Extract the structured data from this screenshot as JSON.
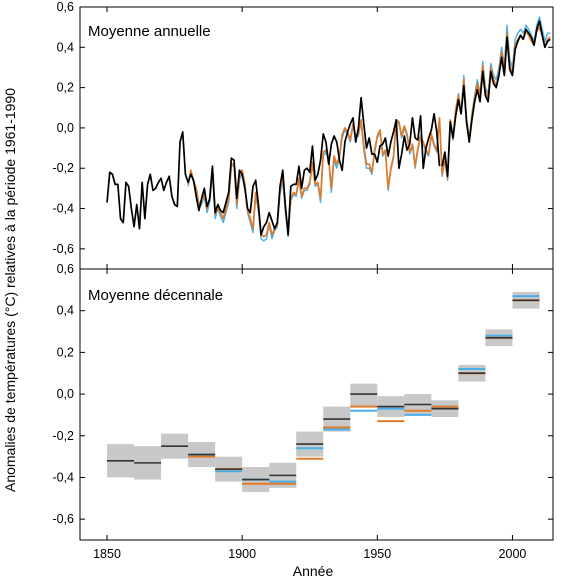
{
  "figure": {
    "ylabel": "Anomalies de températures (°C) relatives à la période 1961-1990",
    "xlabel": "Année"
  },
  "colors": {
    "black_series": "#000000",
    "orange_series": "#e07b2a",
    "blue_series": "#4aaee8",
    "band": "#c8c8c8"
  },
  "chart_data": [
    {
      "type": "line",
      "title": "Moyenne annuelle",
      "xlim": [
        1840,
        2015
      ],
      "ylim": [
        -0.7,
        0.6
      ],
      "xticks": [
        1850,
        1900,
        1950,
        2000
      ],
      "yticks": [
        "-0,6",
        "-0,4",
        "-0,2",
        "0,0",
        "0,2",
        "0,4",
        "0,6"
      ],
      "series": [
        {
          "color_key": "black_series",
          "x_start": 1850,
          "values": [
            -0.37,
            -0.22,
            -0.23,
            -0.28,
            -0.28,
            -0.45,
            -0.47,
            -0.27,
            -0.29,
            -0.4,
            -0.49,
            -0.38,
            -0.5,
            -0.27,
            -0.45,
            -0.28,
            -0.23,
            -0.31,
            -0.3,
            -0.27,
            -0.25,
            -0.31,
            -0.27,
            -0.24,
            -0.34,
            -0.38,
            -0.39,
            -0.07,
            -0.02,
            -0.23,
            -0.27,
            -0.23,
            -0.26,
            -0.34,
            -0.41,
            -0.35,
            -0.3,
            -0.39,
            -0.35,
            -0.19,
            -0.42,
            -0.38,
            -0.41,
            -0.42,
            -0.37,
            -0.32,
            -0.15,
            -0.16,
            -0.35,
            -0.21,
            -0.23,
            -0.3,
            -0.4,
            -0.42,
            -0.29,
            -0.26,
            -0.38,
            -0.53,
            -0.49,
            -0.47,
            -0.42,
            -0.46,
            -0.5,
            -0.47,
            -0.29,
            -0.21,
            -0.39,
            -0.53,
            -0.29,
            -0.28,
            -0.28,
            -0.19,
            -0.3,
            -0.21,
            -0.2,
            -0.22,
            -0.09,
            -0.26,
            -0.23,
            -0.16,
            -0.03,
            -0.07,
            -0.18,
            -0.08,
            -0.04,
            -0.07,
            -0.16,
            -0.21,
            -0.07,
            -0.02,
            0.02,
            0.05,
            -0.07,
            0.0,
            0.15,
            0.02,
            -0.1,
            -0.05,
            -0.13,
            -0.13,
            -0.17,
            -0.09,
            -0.08,
            -0.05,
            -0.14,
            -0.07,
            -0.02,
            0.04,
            -0.2,
            -0.13,
            -0.04,
            -0.11,
            -0.08,
            0.05,
            -0.05,
            -0.06,
            0.06,
            -0.2,
            -0.1,
            -0.05,
            -0.01,
            0.07,
            -0.02,
            -0.19
          ],
          "note_end": 1973
        },
        {
          "color_key": "orange_series",
          "x_start": 1880,
          "values": [
            -0.28,
            -0.21,
            -0.26,
            -0.3,
            -0.38,
            -0.36,
            -0.33,
            -0.4,
            -0.35,
            -0.2,
            -0.43,
            -0.39,
            -0.42,
            -0.45,
            -0.4,
            -0.35,
            -0.18,
            -0.18,
            -0.38,
            -0.24,
            -0.21,
            -0.28,
            -0.41,
            -0.45,
            -0.5,
            -0.32,
            -0.4,
            -0.53,
            -0.54,
            -0.53,
            -0.47,
            -0.53,
            -0.5,
            -0.48,
            -0.31,
            -0.24,
            -0.4,
            -0.52,
            -0.35,
            -0.32,
            -0.33,
            -0.25,
            -0.34,
            -0.3,
            -0.3,
            -0.27,
            -0.17,
            -0.28,
            -0.27,
            -0.35,
            -0.12,
            -0.11,
            -0.15,
            -0.3,
            -0.14,
            -0.18,
            -0.14,
            -0.03,
            0.0,
            -0.02,
            -0.06,
            0.02,
            -0.04,
            -0.03,
            0.04,
            -0.09,
            -0.18,
            -0.18,
            -0.22,
            -0.11,
            -0.04,
            -0.01,
            -0.13,
            -0.11,
            -0.3,
            -0.2,
            -0.14,
            0.04,
            0.03,
            -0.04,
            0.01,
            -0.03,
            -0.12,
            -0.08,
            -0.19,
            -0.1,
            -0.04,
            -0.07,
            -0.11,
            -0.13,
            -0.03,
            -0.08,
            -0.11,
            0.05,
            -0.23,
            -0.15,
            -0.25,
            0.04,
            -0.05,
            0.09,
            0.16,
            0.07,
            0.24,
            0.04,
            -0.06,
            0.06,
            0.15,
            0.22,
            0.16,
            0.31,
            0.18,
            0.15,
            0.3,
            0.24,
            0.21,
            0.27,
            0.38,
            0.28,
            0.47,
            0.31,
            0.27,
            0.41,
            0.44,
            0.46,
            0.44,
            0.48,
            0.46,
            0.43,
            0.41,
            0.48,
            0.5,
            0.46,
            0.4,
            0.44,
            0.45
          ]
        },
        {
          "color_key": "blue_series",
          "x_start": 1880,
          "values": [
            -0.29,
            -0.22,
            -0.27,
            -0.31,
            -0.4,
            -0.38,
            -0.34,
            -0.42,
            -0.37,
            -0.22,
            -0.45,
            -0.4,
            -0.44,
            -0.47,
            -0.42,
            -0.37,
            -0.19,
            -0.19,
            -0.4,
            -0.26,
            -0.22,
            -0.29,
            -0.42,
            -0.47,
            -0.52,
            -0.33,
            -0.41,
            -0.55,
            -0.56,
            -0.55,
            -0.48,
            -0.55,
            -0.51,
            -0.49,
            -0.33,
            -0.26,
            -0.42,
            -0.54,
            -0.36,
            -0.33,
            -0.34,
            -0.26,
            -0.35,
            -0.31,
            -0.31,
            -0.28,
            -0.18,
            -0.29,
            -0.28,
            -0.37,
            -0.14,
            -0.12,
            -0.16,
            -0.32,
            -0.16,
            -0.2,
            -0.15,
            -0.05,
            -0.01,
            -0.03,
            -0.07,
            0.01,
            -0.05,
            -0.04,
            0.03,
            -0.11,
            -0.2,
            -0.2,
            -0.23,
            -0.12,
            -0.05,
            -0.02,
            -0.14,
            -0.12,
            -0.31,
            -0.21,
            -0.15,
            0.03,
            0.02,
            -0.05,
            0.0,
            -0.04,
            -0.13,
            -0.09,
            -0.2,
            -0.11,
            -0.05,
            -0.08,
            -0.12,
            -0.14,
            -0.04,
            -0.09,
            -0.12,
            0.04,
            -0.24,
            -0.16,
            -0.26,
            0.03,
            -0.06,
            0.08,
            0.17,
            0.08,
            0.26,
            0.05,
            -0.05,
            0.07,
            0.16,
            0.24,
            0.17,
            0.33,
            0.2,
            0.17,
            0.32,
            0.26,
            0.24,
            0.3,
            0.4,
            0.31,
            0.51,
            0.34,
            0.3,
            0.44,
            0.47,
            0.49,
            0.47,
            0.51,
            0.49,
            0.46,
            0.43,
            0.51,
            0.55,
            0.49,
            0.43,
            0.47,
            0.47
          ]
        },
        {
          "color_key": "black_series",
          "x_start": 1974,
          "values": [
            -0.19,
            -0.12,
            -0.24,
            0.03,
            -0.05,
            0.06,
            0.14,
            0.07,
            0.21,
            0.03,
            -0.07,
            0.04,
            0.13,
            0.19,
            0.13,
            0.28,
            0.16,
            0.13,
            0.28,
            0.22,
            0.2,
            0.26,
            0.35,
            0.26,
            0.45,
            0.29,
            0.26,
            0.39,
            0.43,
            0.46,
            0.44,
            0.49,
            0.47,
            0.45,
            0.41,
            0.49,
            0.53,
            0.46,
            0.4,
            0.43,
            0.44
          ]
        }
      ]
    },
    {
      "type": "bar",
      "title": "Moyenne décennale",
      "xlim": [
        1840,
        2015
      ],
      "ylim": [
        -0.7,
        0.6
      ],
      "xticks": [
        1850,
        1900,
        1950,
        2000
      ],
      "yticks": [
        "-0,6",
        "-0,4",
        "-0,2",
        "0,0",
        "0,2",
        "0,4",
        "0,6"
      ],
      "decades": [
        {
          "start": 1850,
          "mean": -0.32,
          "low": -0.4,
          "high": -0.24,
          "orange": null,
          "blue": null
        },
        {
          "start": 1860,
          "mean": -0.33,
          "low": -0.41,
          "high": -0.25,
          "orange": null,
          "blue": null
        },
        {
          "start": 1870,
          "mean": -0.25,
          "low": -0.31,
          "high": -0.19,
          "orange": null,
          "blue": null
        },
        {
          "start": 1880,
          "mean": -0.29,
          "low": -0.35,
          "high": -0.23,
          "orange": -0.3,
          "blue": -0.29
        },
        {
          "start": 1890,
          "mean": -0.36,
          "low": -0.42,
          "high": -0.3,
          "orange": -0.36,
          "blue": -0.37
        },
        {
          "start": 1900,
          "mean": -0.41,
          "low": -0.47,
          "high": -0.35,
          "orange": -0.43,
          "blue": -0.41
        },
        {
          "start": 1910,
          "mean": -0.39,
          "low": -0.45,
          "high": -0.33,
          "orange": -0.43,
          "blue": -0.42
        },
        {
          "start": 1920,
          "mean": -0.24,
          "low": -0.3,
          "high": -0.18,
          "orange": -0.31,
          "blue": -0.26
        },
        {
          "start": 1930,
          "mean": -0.12,
          "low": -0.18,
          "high": -0.06,
          "orange": -0.16,
          "blue": -0.17
        },
        {
          "start": 1940,
          "mean": 0.0,
          "low": -0.06,
          "high": 0.05,
          "orange": -0.06,
          "blue": -0.08
        },
        {
          "start": 1950,
          "mean": -0.06,
          "low": -0.11,
          "high": -0.01,
          "orange": -0.13,
          "blue": -0.07
        },
        {
          "start": 1960,
          "mean": -0.05,
          "low": -0.1,
          "high": 0.0,
          "orange": -0.08,
          "blue": -0.1
        },
        {
          "start": 1970,
          "mean": -0.07,
          "low": -0.11,
          "high": -0.03,
          "orange": -0.06,
          "blue": -0.07
        },
        {
          "start": 1980,
          "mean": 0.1,
          "low": 0.06,
          "high": 0.14,
          "orange": 0.1,
          "blue": 0.12
        },
        {
          "start": 1990,
          "mean": 0.27,
          "low": 0.23,
          "high": 0.31,
          "orange": 0.27,
          "blue": 0.28
        },
        {
          "start": 2000,
          "mean": 0.45,
          "low": 0.41,
          "high": 0.49,
          "orange": 0.45,
          "blue": 0.47
        }
      ]
    }
  ]
}
